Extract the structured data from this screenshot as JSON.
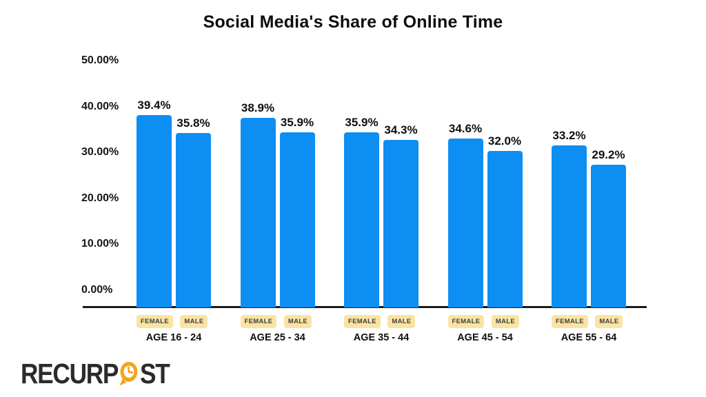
{
  "title": "Social Media's Share of Online Time",
  "colors": {
    "bar": "#0d8ef2",
    "badge_bg": "#fae4a4",
    "badge_text": "#3e3e3e",
    "axis": "#1b1b1b",
    "logo_text": "#2b2b2b",
    "logo_accent": "#f6a41d"
  },
  "chart_data": {
    "type": "bar",
    "title": "Social Media's Share of Online Time",
    "categories": [
      "AGE 16 - 24",
      "AGE 25 - 34",
      "AGE 35 - 44",
      "AGE 45 - 54",
      "AGE 55 - 64"
    ],
    "series": [
      {
        "name": "FEMALE",
        "values": [
          39.4,
          38.9,
          35.9,
          34.6,
          33.2
        ],
        "labels": [
          "39.4%",
          "38.9%",
          "35.9%",
          "34.6%",
          "33.2%"
        ]
      },
      {
        "name": "MALE",
        "values": [
          35.8,
          35.9,
          34.3,
          32.0,
          29.2
        ],
        "labels": [
          "35.8%",
          "35.9%",
          "34.3%",
          "32.0%",
          "29.2%"
        ]
      }
    ],
    "yticks": [
      "50.00%",
      "40.00%",
      "30.00%",
      "20.00%",
      "10.00%",
      "0.00%"
    ],
    "ylim": [
      0,
      50
    ],
    "grid": false,
    "legend_position": "per-bar badges below axis"
  },
  "branding": {
    "logo_part1": "RECURP",
    "logo_part2": "ST"
  }
}
